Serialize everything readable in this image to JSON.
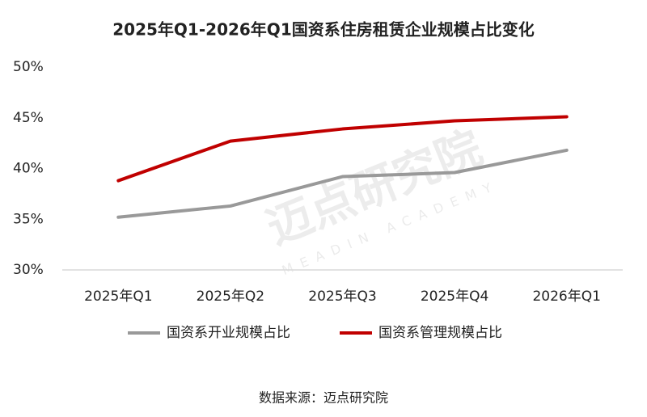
{
  "chart_data": {
    "type": "line",
    "title": "2025年Q1-2026年Q1国资系住房租赁企业规模占比变化",
    "categories": [
      "2025年Q1",
      "2025年Q2",
      "2025年Q3",
      "2025年Q4",
      "2026年Q1"
    ],
    "series": [
      {
        "name": "国资系开业规模占比",
        "color": "#999999",
        "values": [
          35.2,
          36.3,
          39.2,
          39.6,
          41.8
        ]
      },
      {
        "name": "国资系管理规模占比",
        "color": "#c00000",
        "values": [
          38.8,
          42.7,
          43.9,
          44.7,
          45.1
        ]
      }
    ],
    "ylim": [
      30,
      50
    ],
    "yticks": [
      {
        "value": 30,
        "label": "30%"
      },
      {
        "value": 35,
        "label": "35%"
      },
      {
        "value": 40,
        "label": "40%"
      },
      {
        "value": 45,
        "label": "45%"
      },
      {
        "value": 50,
        "label": "50%"
      }
    ],
    "grid": false,
    "legend": "bottom",
    "source": "数据来源：迈点研究院",
    "watermark": "迈点研究院",
    "watermark_sub": "MEADIN ACADEMY"
  }
}
